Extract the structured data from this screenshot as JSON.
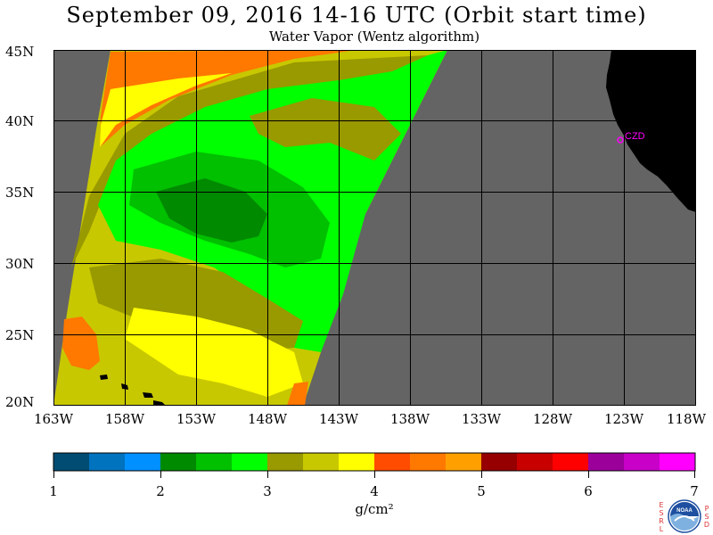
{
  "title": "September 09, 2016  14-16 UTC  (Orbit start time)",
  "subtitle": "Water Vapor (Wentz algorithm)",
  "map": {
    "lat_labels": [
      "45N",
      "40N",
      "35N",
      "30N",
      "25N",
      "20N"
    ],
    "lon_labels": [
      "163W",
      "158W",
      "153W",
      "148W",
      "143W",
      "138W",
      "133W",
      "128W",
      "123W",
      "118W"
    ],
    "station_label": "CZD",
    "colors": {
      "no_data": "#646464",
      "land": "#000000",
      "grid": "#000000",
      "station": "#ff00ff"
    }
  },
  "colorbar": {
    "ticks": [
      "1",
      "2",
      "3",
      "4",
      "5",
      "6",
      "7"
    ],
    "units": "g/cm²",
    "range": [
      1,
      7
    ],
    "colors": [
      "#004c73",
      "#0073bf",
      "#0090ff",
      "#008a00",
      "#00c000",
      "#00ff00",
      "#999900",
      "#c8c800",
      "#ffff00",
      "#ff4c00",
      "#ff7800",
      "#ffa000",
      "#960000",
      "#c80000",
      "#ff0000",
      "#9b009b",
      "#c800c8",
      "#ff00ff"
    ]
  },
  "logo": {
    "left_letters": [
      "E",
      "S",
      "R",
      "L"
    ],
    "right_letters": [
      "P",
      "S",
      "D"
    ],
    "text": "NOAA"
  }
}
